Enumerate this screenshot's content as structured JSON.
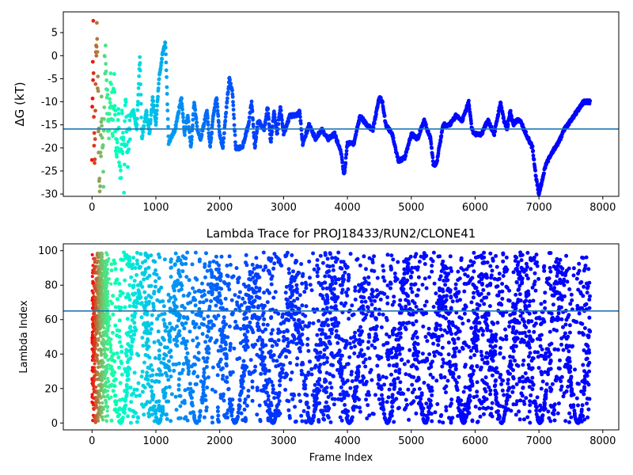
{
  "chart_data": [
    {
      "type": "scatter",
      "title": "",
      "xlabel": "",
      "ylabel": "ΔG (kT)",
      "xlim": [
        -450,
        8250
      ],
      "ylim": [
        -30.5,
        9.5
      ],
      "xticks": [
        0,
        1000,
        2000,
        3000,
        4000,
        5000,
        6000,
        7000,
        8000
      ],
      "yticks": [
        -30,
        -25,
        -20,
        -15,
        -10,
        -5,
        0,
        5
      ],
      "hline": -15.9,
      "hline_color": "#1f77b4",
      "colormap": "rainbow (red at frame 0 → violet at later frames)",
      "grid": false,
      "trace_anchors": [
        [
          0,
          -20
        ],
        [
          20,
          4
        ],
        [
          40,
          -28
        ],
        [
          60,
          -2
        ],
        [
          80,
          5
        ],
        [
          100,
          -15
        ],
        [
          120,
          -29
        ],
        [
          150,
          -12
        ],
        [
          180,
          -25
        ],
        [
          200,
          0
        ],
        [
          230,
          -5
        ],
        [
          260,
          -18
        ],
        [
          290,
          -8
        ],
        [
          320,
          -14
        ],
        [
          350,
          -6
        ],
        [
          380,
          -22
        ],
        [
          410,
          -13
        ],
        [
          440,
          -29
        ],
        [
          470,
          -16
        ],
        [
          500,
          -25
        ],
        [
          530,
          -10
        ],
        [
          560,
          -20
        ],
        [
          600,
          -13
        ],
        [
          650,
          -12
        ],
        [
          700,
          -16
        ],
        [
          750,
          0
        ],
        [
          780,
          -18
        ],
        [
          850,
          -12
        ],
        [
          900,
          -17
        ],
        [
          950,
          -9
        ],
        [
          1000,
          -15
        ],
        [
          1050,
          -5
        ],
        [
          1100,
          0
        ],
        [
          1150,
          3
        ],
        [
          1200,
          -19
        ],
        [
          1300,
          -16
        ],
        [
          1400,
          -9
        ],
        [
          1450,
          -17
        ],
        [
          1500,
          -13
        ],
        [
          1550,
          -20
        ],
        [
          1600,
          -10
        ],
        [
          1650,
          -16
        ],
        [
          1700,
          -18
        ],
        [
          1800,
          -12
        ],
        [
          1850,
          -20
        ],
        [
          1900,
          -13
        ],
        [
          1950,
          -9
        ],
        [
          2000,
          -17
        ],
        [
          2050,
          -20
        ],
        [
          2100,
          -12
        ],
        [
          2150,
          -5
        ],
        [
          2200,
          -8
        ],
        [
          2250,
          -20
        ],
        [
          2350,
          -20
        ],
        [
          2450,
          -15
        ],
        [
          2500,
          -10
        ],
        [
          2550,
          -20
        ],
        [
          2600,
          -14
        ],
        [
          2700,
          -16
        ],
        [
          2750,
          -11
        ],
        [
          2800,
          -19
        ],
        [
          2850,
          -12
        ],
        [
          2900,
          -17
        ],
        [
          2950,
          -11
        ],
        [
          3000,
          -17
        ],
        [
          3100,
          -13
        ],
        [
          3200,
          -13
        ],
        [
          3250,
          -12
        ],
        [
          3300,
          -19
        ],
        [
          3400,
          -15
        ],
        [
          3500,
          -18
        ],
        [
          3600,
          -16
        ],
        [
          3700,
          -18
        ],
        [
          3800,
          -17
        ],
        [
          3900,
          -21
        ],
        [
          3950,
          -26
        ],
        [
          4000,
          -19
        ],
        [
          4100,
          -19
        ],
        [
          4200,
          -13
        ],
        [
          4300,
          -15
        ],
        [
          4400,
          -16
        ],
        [
          4500,
          -9
        ],
        [
          4550,
          -10
        ],
        [
          4600,
          -15
        ],
        [
          4700,
          -17
        ],
        [
          4750,
          -20
        ],
        [
          4800,
          -23
        ],
        [
          4900,
          -22
        ],
        [
          5000,
          -17
        ],
        [
          5100,
          -18
        ],
        [
          5200,
          -14
        ],
        [
          5300,
          -18
        ],
        [
          5350,
          -24
        ],
        [
          5400,
          -23
        ],
        [
          5500,
          -15
        ],
        [
          5600,
          -15
        ],
        [
          5700,
          -13
        ],
        [
          5800,
          -14
        ],
        [
          5900,
          -10
        ],
        [
          5950,
          -16
        ],
        [
          6000,
          -17
        ],
        [
          6100,
          -17
        ],
        [
          6200,
          -14
        ],
        [
          6300,
          -17
        ],
        [
          6400,
          -10
        ],
        [
          6450,
          -14
        ],
        [
          6500,
          -16
        ],
        [
          6550,
          -12
        ],
        [
          6600,
          -15
        ],
        [
          6650,
          -14
        ],
        [
          6700,
          -14
        ],
        [
          6800,
          -17
        ],
        [
          6900,
          -20
        ],
        [
          6950,
          -26
        ],
        [
          7000,
          -30
        ],
        [
          7100,
          -24
        ],
        [
          7200,
          -21
        ],
        [
          7300,
          -19
        ],
        [
          7400,
          -16
        ],
        [
          7500,
          -14
        ],
        [
          7600,
          -12
        ],
        [
          7700,
          -10
        ],
        [
          7800,
          -10
        ]
      ]
    },
    {
      "type": "scatter",
      "title": "Lambda Trace for PROJ18433/RUN2/CLONE41",
      "xlabel": "Frame Index",
      "ylabel": "Lambda Index",
      "xlim": [
        -450,
        8250
      ],
      "ylim": [
        -4,
        104
      ],
      "xticks": [
        0,
        1000,
        2000,
        3000,
        4000,
        5000,
        6000,
        7000,
        8000
      ],
      "yticks": [
        0,
        20,
        40,
        60,
        80,
        100
      ],
      "hline": 65,
      "hline_color": "#1f77b4",
      "colormap": "rainbow (red at frame 0 → violet at later frames)",
      "grid": false,
      "frame_range": [
        0,
        7800
      ],
      "lambda_range": [
        0,
        99
      ],
      "point_count_estimate": 4500
    }
  ]
}
